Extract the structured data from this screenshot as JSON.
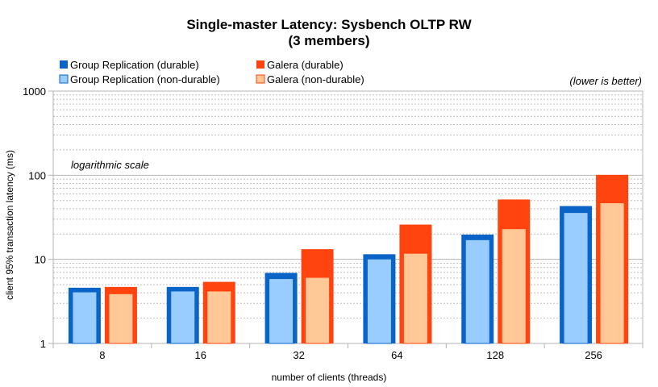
{
  "chart_data": {
    "type": "bar",
    "title": "Single-master Latency: Sysbench OLTP RW",
    "subtitle": "(3 members)",
    "xlabel": "number of clients (threads)",
    "ylabel": "client  95% transaction latency (ms)",
    "y_scale": "log",
    "ylim": [
      1,
      1000
    ],
    "y_ticks": [
      "1",
      "10",
      "100",
      "1000"
    ],
    "grid": true,
    "legend_position": "top",
    "annotations": [
      "(lower is better)",
      "logarithmic scale"
    ],
    "categories": [
      "8",
      "16",
      "32",
      "64",
      "128",
      "256"
    ],
    "series": [
      {
        "name": "Group Replication (durable)",
        "color": "#0a64c8",
        "values": [
          4.6,
          4.7,
          6.9,
          11.5,
          19.7,
          43
        ]
      },
      {
        "name": "Group Replication (non-durable)",
        "color": "#99ccff",
        "values": [
          4.1,
          4.2,
          5.9,
          10.1,
          17.1,
          36
        ]
      },
      {
        "name": "Galera  (durable)",
        "color": "#ff4410",
        "values": [
          4.7,
          5.4,
          13.2,
          25.9,
          51.5,
          101
        ]
      },
      {
        "name": "Galera  (non-durable)",
        "color": "#ffc896",
        "values": [
          3.9,
          4.2,
          6.1,
          11.8,
          23.1,
          47
        ]
      }
    ]
  }
}
